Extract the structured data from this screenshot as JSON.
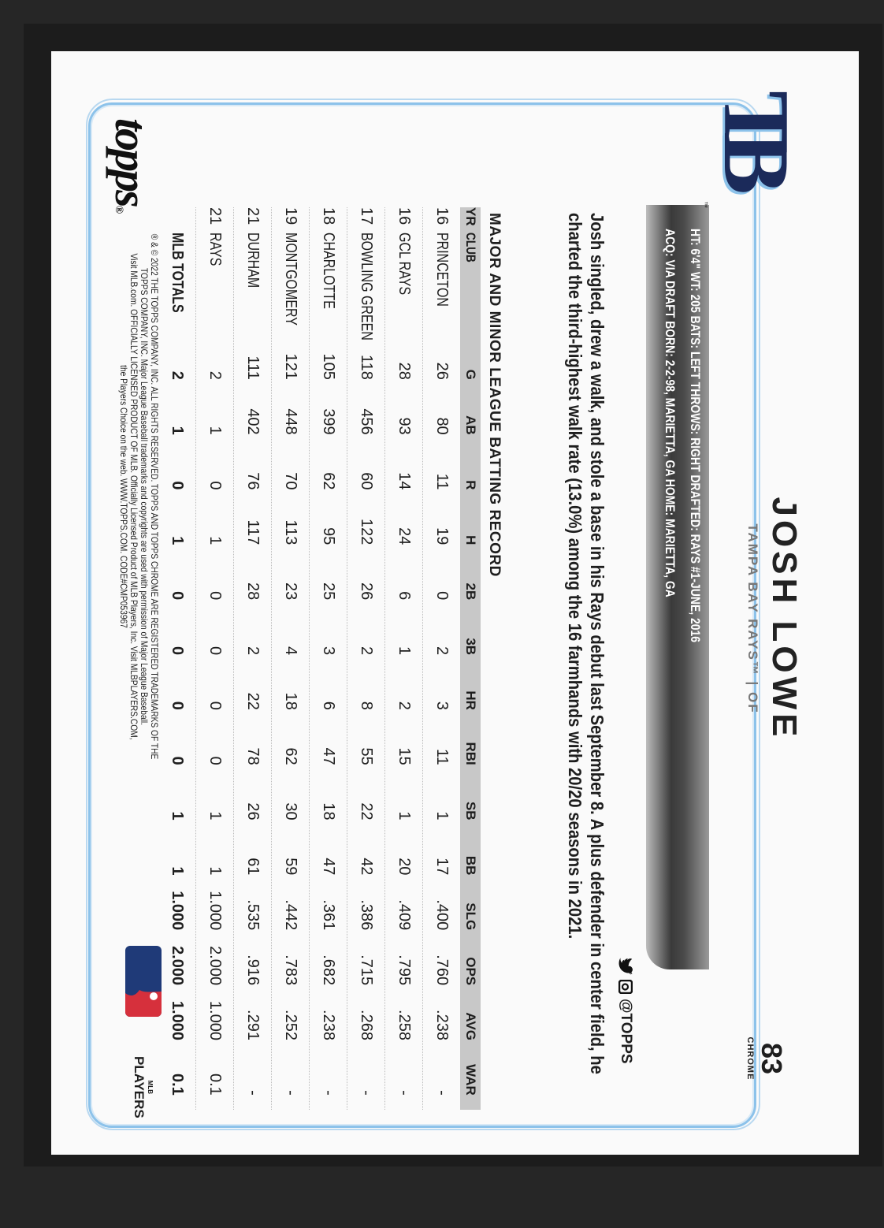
{
  "player": {
    "name": "JOSH LOWE",
    "team_position": "TAMPA BAY RAYS™ | OF",
    "card_number": "83",
    "set": "CHROME"
  },
  "logo": {
    "text": "TB",
    "tm": "™"
  },
  "bio": {
    "line1": "HT: 6'4\"   WT: 205   BATS: LEFT   THROWS: RIGHT   DRAFTED: RAYS #1-JUNE, 2016",
    "line2": "ACQ: VIA DRAFT   BORN: 2-2-98, MARIETTA, GA   HOME: MARIETTA, GA"
  },
  "social": {
    "handle": "@TOPPS",
    "icons": [
      "twitter-icon",
      "instagram-icon"
    ]
  },
  "blurb": "Josh singled, drew a walk, and stole a base in his Rays debut last September 8. A plus defender in center field, he charted the third-highest walk rate (13.0%) among the 16 farmhands with 20/20 seasons in 2021.",
  "record_title": "MAJOR AND MINOR LEAGUE BATTING RECORD",
  "table": {
    "headers": [
      "YR",
      "CLUB",
      "G",
      "AB",
      "R",
      "H",
      "2B",
      "3B",
      "HR",
      "RBI",
      "SB",
      "BB",
      "SLG",
      "OPS",
      "AVG",
      "WAR"
    ],
    "rows": [
      [
        "16",
        "PRINCETON",
        "26",
        "80",
        "11",
        "19",
        "0",
        "2",
        "3",
        "11",
        "1",
        "17",
        ".400",
        ".760",
        ".238",
        "-"
      ],
      [
        "16",
        "GCL RAYS",
        "28",
        "93",
        "14",
        "24",
        "6",
        "1",
        "2",
        "15",
        "1",
        "20",
        ".409",
        ".795",
        ".258",
        "-"
      ],
      [
        "17",
        "BOWLING GREEN",
        "118",
        "456",
        "60",
        "122",
        "26",
        "2",
        "8",
        "55",
        "22",
        "42",
        ".386",
        ".715",
        ".268",
        "-"
      ],
      [
        "18",
        "CHARLOTTE",
        "105",
        "399",
        "62",
        "95",
        "25",
        "3",
        "6",
        "47",
        "18",
        "47",
        ".361",
        ".682",
        ".238",
        "-"
      ],
      [
        "19",
        "MONTGOMERY",
        "121",
        "448",
        "70",
        "113",
        "23",
        "4",
        "18",
        "62",
        "30",
        "59",
        ".442",
        ".783",
        ".252",
        "-"
      ],
      [
        "21",
        "DURHAM",
        "111",
        "402",
        "76",
        "117",
        "28",
        "2",
        "22",
        "78",
        "26",
        "61",
        ".535",
        ".916",
        ".291",
        "-"
      ],
      [
        "21",
        "RAYS",
        "2",
        "1",
        "0",
        "1",
        "0",
        "0",
        "0",
        "0",
        "1",
        "1",
        "1.000",
        "2.000",
        "1.000",
        "0.1"
      ]
    ],
    "totals": [
      "",
      "MLB TOTALS",
      "2",
      "1",
      "0",
      "1",
      "0",
      "0",
      "0",
      "0",
      "1",
      "1",
      "1.000",
      "2.000",
      "1.000",
      "0.1"
    ]
  },
  "footer": {
    "brand": "topps",
    "legal_line1": "® & © 2022 THE TOPPS COMPANY, INC. ALL RIGHTS RESERVED. TOPPS AND TOPPS CHROME ARE REGISTERED TRADEMARKS OF THE",
    "legal_line2": "TOPPS COMPANY, INC. Major League Baseball trademarks and copyrights are used with permission of Major League Baseball.",
    "legal_line3": "Visit MLB.com. OFFICIALLY LICENSED PRODUCT OF MLB. Officially Licensed Product of MLB Players, Inc. Visit MLBPLAYERS.COM,",
    "legal_line4": "the Players Choice on the web. WWW.TOPPS.COM. CODE#CMP053967",
    "mlbpa_small": "MLB",
    "mlbpa": "PLAYERS"
  },
  "colors": {
    "border": "#8cc2ea",
    "navy": "#1b2a5a",
    "mlb_red": "#d6303c",
    "mlb_blue": "#1f3a78"
  }
}
